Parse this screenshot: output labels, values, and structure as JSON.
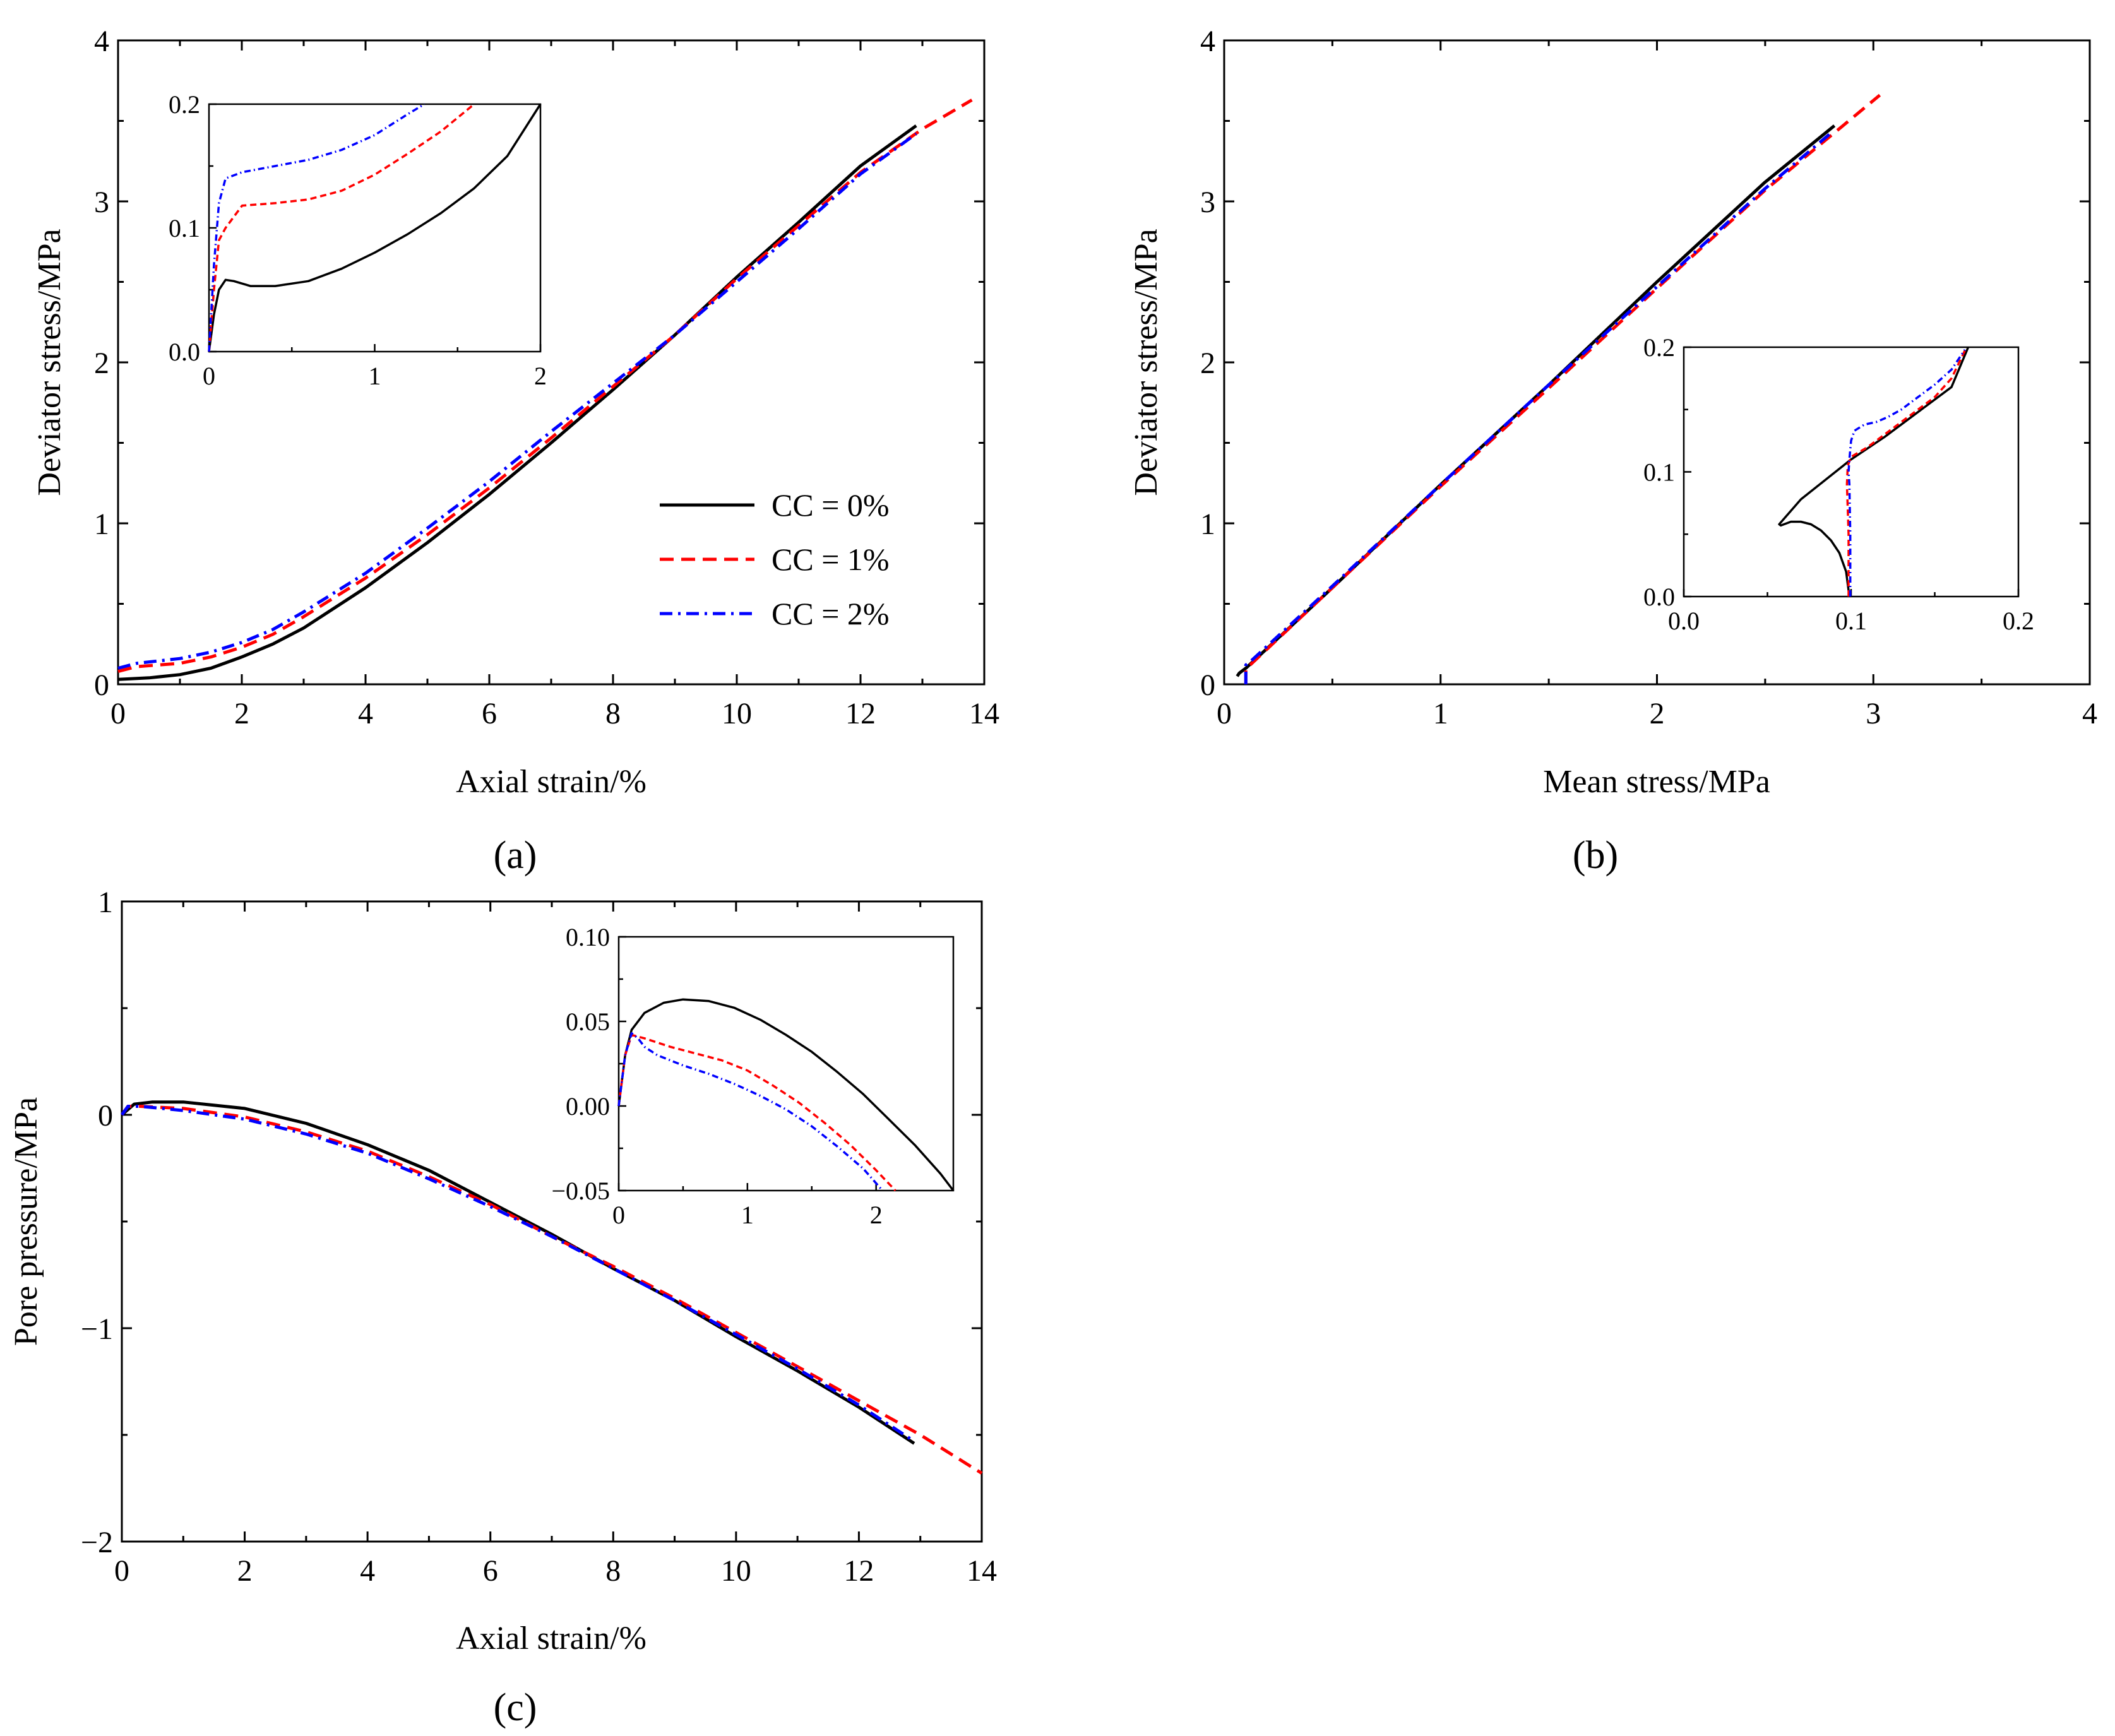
{
  "legend": [
    {
      "label": "CC = 0%",
      "color": "#000000",
      "dash": "solid"
    },
    {
      "label": "CC = 1%",
      "color": "#ff0000",
      "dash": "dash"
    },
    {
      "label": "CC = 2%",
      "color": "#0000ff",
      "dash": "dashdot"
    }
  ],
  "chart_data": [
    {
      "id": "a",
      "type": "line",
      "caption": "(a)",
      "xlabel": "Axial strain/%",
      "ylabel": "Deviator stress/MPa",
      "xlim": [
        0,
        14
      ],
      "ylim": [
        0,
        4
      ],
      "xticks": [
        0,
        2,
        4,
        6,
        8,
        10,
        12,
        14
      ],
      "yticks": [
        0,
        1,
        2,
        3,
        4
      ],
      "series": [
        {
          "name": "CC = 0%",
          "x": [
            0,
            0.5,
            1,
            1.5,
            2,
            2.5,
            3,
            4,
            5,
            6,
            7,
            8,
            9,
            10,
            11,
            12,
            12.9
          ],
          "y": [
            0.03,
            0.04,
            0.06,
            0.1,
            0.17,
            0.25,
            0.35,
            0.6,
            0.88,
            1.18,
            1.5,
            1.83,
            2.17,
            2.53,
            2.87,
            3.22,
            3.47
          ]
        },
        {
          "name": "CC = 1%",
          "x": [
            0,
            0.3,
            1,
            1.5,
            2,
            2.5,
            3,
            4,
            5,
            6,
            7,
            8,
            9,
            10,
            11,
            12,
            13,
            13.8
          ],
          "y": [
            0.08,
            0.11,
            0.13,
            0.17,
            0.23,
            0.31,
            0.42,
            0.66,
            0.93,
            1.22,
            1.53,
            1.85,
            2.17,
            2.52,
            2.85,
            3.18,
            3.45,
            3.63
          ]
        },
        {
          "name": "CC = 2%",
          "x": [
            0,
            0.3,
            1,
            1.5,
            2,
            2.5,
            3,
            4,
            5,
            6,
            7,
            8,
            9,
            10,
            11,
            12,
            12.9
          ],
          "y": [
            0.1,
            0.13,
            0.16,
            0.2,
            0.26,
            0.34,
            0.45,
            0.69,
            0.97,
            1.26,
            1.57,
            1.87,
            2.17,
            2.5,
            2.83,
            3.17,
            3.42
          ]
        }
      ],
      "inset": {
        "xlim": [
          0,
          2
        ],
        "ylim": [
          0,
          0.2
        ],
        "xticks": [
          0,
          1,
          2
        ],
        "yticks": [
          0.0,
          0.1,
          0.2
        ],
        "xtick_labels": [
          "0",
          "1",
          "2"
        ],
        "ytick_labels": [
          "0.0",
          "0.1",
          "0.2"
        ],
        "series": [
          {
            "name": "CC = 0%",
            "x": [
              0,
              0.03,
              0.06,
              0.1,
              0.15,
              0.25,
              0.4,
              0.6,
              0.8,
              1,
              1.2,
              1.4,
              1.6,
              1.8,
              2
            ],
            "y": [
              0,
              0.03,
              0.05,
              0.058,
              0.057,
              0.053,
              0.053,
              0.057,
              0.067,
              0.08,
              0.095,
              0.112,
              0.132,
              0.158,
              0.2
            ]
          },
          {
            "name": "CC = 1%",
            "x": [
              0,
              0.03,
              0.06,
              0.1,
              0.2,
              0.4,
              0.6,
              0.8,
              1,
              1.2,
              1.4,
              1.6
            ],
            "y": [
              0,
              0.05,
              0.09,
              0.1,
              0.118,
              0.12,
              0.123,
              0.13,
              0.143,
              0.16,
              0.178,
              0.2
            ]
          },
          {
            "name": "CC = 2%",
            "x": [
              0,
              0.03,
              0.06,
              0.1,
              0.2,
              0.4,
              0.6,
              0.8,
              1,
              1.2,
              1.3
            ],
            "y": [
              0,
              0.07,
              0.12,
              0.14,
              0.145,
              0.15,
              0.155,
              0.163,
              0.175,
              0.192,
              0.2
            ]
          }
        ]
      }
    },
    {
      "id": "b",
      "type": "line",
      "caption": "(b)",
      "xlabel": "Mean stress/MPa",
      "ylabel": "Deviator stress/MPa",
      "xlim": [
        0,
        4
      ],
      "ylim": [
        0,
        4
      ],
      "xticks": [
        0,
        1,
        2,
        3,
        4
      ],
      "yticks": [
        0,
        1,
        2,
        3,
        4
      ],
      "series": [
        {
          "name": "CC = 0%",
          "x": [
            0.06,
            0.07,
            0.1,
            0.5,
            1,
            1.5,
            2,
            2.5,
            2.82
          ],
          "y": [
            0.05,
            0.07,
            0.1,
            0.6,
            1.24,
            1.86,
            2.5,
            3.12,
            3.47
          ]
        },
        {
          "name": "CC = 1%",
          "x": [
            0.1,
            0.1,
            0.12,
            0.5,
            1,
            1.5,
            2,
            2.5,
            3.03
          ],
          "y": [
            0,
            0.1,
            0.12,
            0.6,
            1.23,
            1.84,
            2.46,
            3.07,
            3.66
          ]
        },
        {
          "name": "CC = 2%",
          "x": [
            0.1,
            0.1,
            0.12,
            0.5,
            1,
            1.5,
            2,
            2.5,
            2.8
          ],
          "y": [
            0,
            0.12,
            0.14,
            0.61,
            1.24,
            1.86,
            2.47,
            3.08,
            3.42
          ]
        }
      ],
      "inset": {
        "xlim": [
          0,
          0.2
        ],
        "ylim": [
          0,
          0.2
        ],
        "xticks": [
          0,
          0.1,
          0.2
        ],
        "yticks": [
          0,
          0.1,
          0.2
        ],
        "xtick_labels": [
          "0.0",
          "0.1",
          "0.2"
        ],
        "ytick_labels": [
          "0.0",
          "0.1",
          "0.2"
        ],
        "series": [
          {
            "name": "CC = 0%",
            "x": [
              0.099,
              0.097,
              0.093,
              0.088,
              0.082,
              0.076,
              0.07,
              0.064,
              0.058,
              0.057,
              0.07,
              0.1,
              0.12,
              0.14,
              0.16,
              0.17
            ],
            "y": [
              0,
              0.02,
              0.035,
              0.045,
              0.053,
              0.058,
              0.06,
              0.06,
              0.057,
              0.058,
              0.078,
              0.11,
              0.128,
              0.148,
              0.168,
              0.2
            ]
          },
          {
            "name": "CC = 1%",
            "x": [
              0.0985,
              0.0985,
              0.0975,
              0.098,
              0.1,
              0.11,
              0.12,
              0.13,
              0.14,
              0.15,
              0.16,
              0.169
            ],
            "y": [
              0,
              0.05,
              0.09,
              0.105,
              0.112,
              0.12,
              0.13,
              0.14,
              0.15,
              0.16,
              0.175,
              0.2
            ]
          },
          {
            "name": "CC = 2%",
            "x": [
              0.0995,
              0.0995,
              0.099,
              0.0985,
              0.099,
              0.1,
              0.102,
              0.108,
              0.115,
              0.122,
              0.13,
              0.14,
              0.15,
              0.16,
              0.168
            ],
            "y": [
              0,
              0.05,
              0.09,
              0.1,
              0.11,
              0.125,
              0.133,
              0.138,
              0.14,
              0.144,
              0.15,
              0.16,
              0.17,
              0.182,
              0.198
            ]
          }
        ]
      }
    },
    {
      "id": "c",
      "type": "line",
      "caption": "(c)",
      "xlabel": "Axial strain/%",
      "ylabel": "Pore pressure/MPa",
      "xlim": [
        0,
        14
      ],
      "ylim": [
        -2,
        1
      ],
      "xticks": [
        0,
        2,
        4,
        6,
        8,
        10,
        12,
        14
      ],
      "yticks": [
        -2,
        -1,
        0,
        1
      ],
      "ytick_labels": [
        "−2",
        "−1",
        "0",
        "1"
      ],
      "series": [
        {
          "name": "CC = 0%",
          "x": [
            0,
            0.2,
            0.5,
            1,
            2,
            3,
            4,
            5,
            6,
            7,
            8,
            9,
            10,
            11,
            12,
            12.9
          ],
          "y": [
            0.0,
            0.05,
            0.06,
            0.06,
            0.03,
            -0.04,
            -0.14,
            -0.26,
            -0.41,
            -0.56,
            -0.72,
            -0.87,
            -1.04,
            -1.2,
            -1.37,
            -1.54
          ]
        },
        {
          "name": "CC = 1%",
          "x": [
            0,
            0.1,
            0.3,
            1,
            2,
            3,
            4,
            5,
            6,
            7,
            8,
            9,
            10,
            11,
            12,
            13,
            14
          ],
          "y": [
            0.0,
            0.04,
            0.04,
            0.03,
            -0.01,
            -0.08,
            -0.17,
            -0.29,
            -0.42,
            -0.57,
            -0.71,
            -0.86,
            -1.02,
            -1.18,
            -1.34,
            -1.5,
            -1.68
          ]
        },
        {
          "name": "CC = 2%",
          "x": [
            0,
            0.1,
            0.3,
            1,
            2,
            3,
            4,
            5,
            6,
            7,
            8,
            9,
            10,
            11,
            12,
            12.9
          ],
          "y": [
            0.0,
            0.04,
            0.04,
            0.02,
            -0.02,
            -0.09,
            -0.18,
            -0.3,
            -0.43,
            -0.57,
            -0.72,
            -0.87,
            -1.03,
            -1.19,
            -1.36,
            -1.53
          ]
        }
      ],
      "inset": {
        "xlim": [
          0,
          2.6
        ],
        "ylim": [
          -0.05,
          0.1
        ],
        "xticks": [
          0,
          1,
          2
        ],
        "yticks": [
          -0.05,
          0.0,
          0.05,
          0.1
        ],
        "xtick_labels": [
          "0",
          "1",
          "2"
        ],
        "ytick_labels": [
          "−0.05",
          "0.00",
          "0.05",
          "0.10"
        ],
        "series": [
          {
            "name": "CC = 0%",
            "x": [
              0,
              0.05,
              0.1,
              0.2,
              0.35,
              0.5,
              0.7,
              0.9,
              1.1,
              1.3,
              1.5,
              1.7,
              1.9,
              2.1,
              2.3,
              2.5,
              2.6
            ],
            "y": [
              0,
              0.03,
              0.045,
              0.055,
              0.061,
              0.063,
              0.062,
              0.058,
              0.051,
              0.042,
              0.032,
              0.02,
              0.007,
              -0.008,
              -0.023,
              -0.04,
              -0.05
            ]
          },
          {
            "name": "CC = 1%",
            "x": [
              0,
              0.05,
              0.1,
              0.2,
              0.4,
              0.6,
              0.8,
              1,
              1.2,
              1.4,
              1.6,
              1.8,
              2,
              2.15
            ],
            "y": [
              0,
              0.03,
              0.042,
              0.04,
              0.035,
              0.031,
              0.027,
              0.021,
              0.012,
              0.002,
              -0.01,
              -0.023,
              -0.038,
              -0.05
            ]
          },
          {
            "name": "CC = 2%",
            "x": [
              0,
              0.05,
              0.1,
              0.15,
              0.2,
              0.3,
              0.5,
              0.7,
              0.9,
              1.1,
              1.3,
              1.5,
              1.7,
              1.9,
              2.05
            ],
            "y": [
              0,
              0.03,
              0.043,
              0.04,
              0.035,
              0.03,
              0.024,
              0.019,
              0.013,
              0.006,
              -0.002,
              -0.012,
              -0.024,
              -0.037,
              -0.05
            ]
          }
        ]
      }
    }
  ]
}
